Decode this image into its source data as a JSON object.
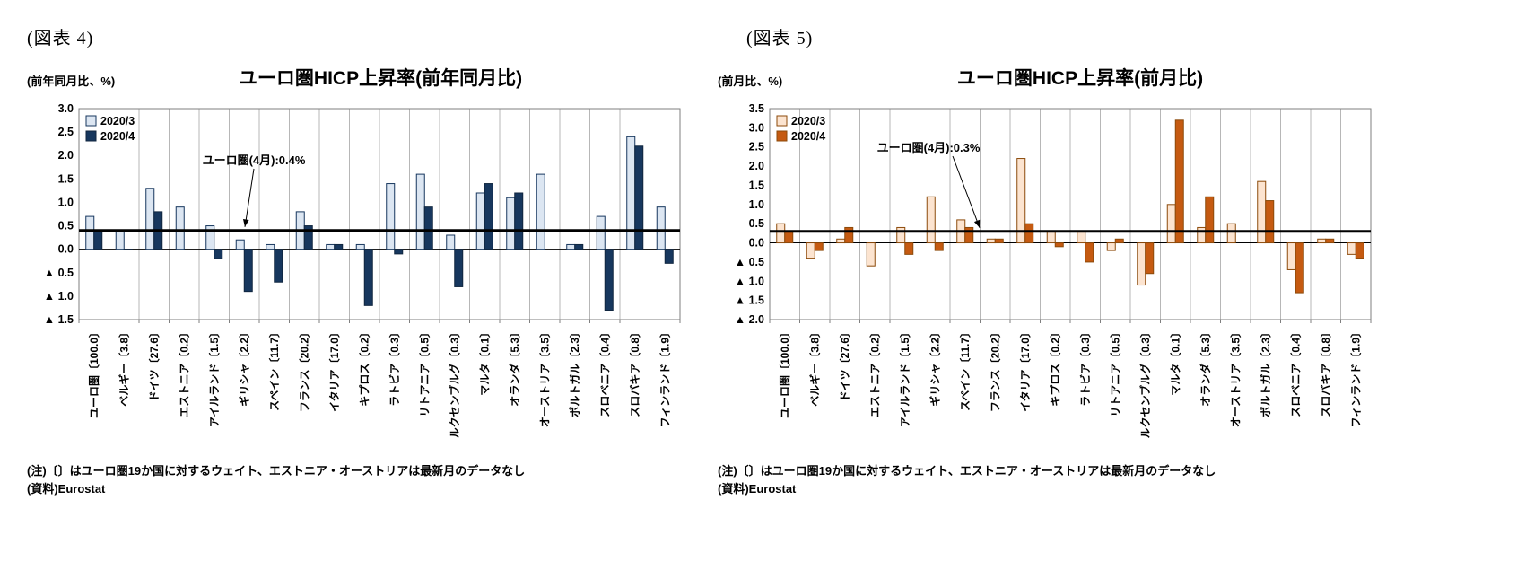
{
  "chart_data": [
    {
      "type": "bar",
      "figure_label": "(図表 4)",
      "unit_label": "(前年同月比、%)",
      "title": "ユーロ圏HICP上昇率(前年同月比)",
      "categories": [
        "ユーロ圏〔100.0〕",
        "ベルギー〔3.8〕",
        "ドイツ〔27.6〕",
        "エストニア〔0.2〕",
        "アイルランド〔1.5〕",
        "ギリシャ〔2.2〕",
        "スペイン〔11.7〕",
        "フランス〔20.2〕",
        "イタリア〔17.0〕",
        "キプロス〔0.2〕",
        "ラトビア〔0.3〕",
        "リトアニア〔0.5〕",
        "ルクセンブルグ〔0.3〕",
        "マルタ〔0.1〕",
        "オランダ〔5.3〕",
        "オーストリア〔3.5〕",
        "ポルトガル〔2.3〕",
        "スロベニア〔0.4〕",
        "スロバキア〔0.8〕",
        "フィンランド〔1.9〕"
      ],
      "series": [
        {
          "name": "2020/3",
          "color": "#dce6f2",
          "border": "#17375e",
          "values": [
            0.7,
            0.4,
            1.3,
            0.9,
            0.5,
            0.2,
            0.1,
            0.8,
            0.1,
            0.1,
            1.4,
            1.6,
            0.3,
            1.2,
            1.1,
            1.6,
            0.1,
            0.7,
            2.4,
            0.9
          ]
        },
        {
          "name": "2020/4",
          "color": "#17375e",
          "border": "#10263f",
          "values": [
            0.4,
            0.0,
            0.8,
            null,
            -0.2,
            -0.9,
            -0.7,
            0.5,
            0.1,
            -1.2,
            -0.1,
            0.9,
            -0.8,
            1.4,
            1.2,
            null,
            0.1,
            -1.3,
            2.2,
            -0.3
          ]
        }
      ],
      "ylim": [
        -1.5,
        3.0
      ],
      "ytick_step": 0.5,
      "negative_tick_prefix": "▲ ",
      "reference_line": {
        "value": 0.4,
        "label": "ユーロ圏(4月):0.4%"
      },
      "legend_position": "top-left-inside",
      "gridlines": "vertical",
      "notes": [
        "(注)〔〕はユーロ圏19か国に対するウェイト、エストニア・オーストリアは最新月のデータなし",
        "(資料)Eurostat"
      ]
    },
    {
      "type": "bar",
      "figure_label": "(図表 5)",
      "unit_label": "(前月比、%)",
      "title": "ユーロ圏HICP上昇率(前月比)",
      "categories": [
        "ユーロ圏〔100.0〕",
        "ベルギー〔3.8〕",
        "ドイツ〔27.6〕",
        "エストニア〔0.2〕",
        "アイルランド〔1.5〕",
        "ギリシャ〔2.2〕",
        "スペイン〔11.7〕",
        "フランス〔20.2〕",
        "イタリア〔17.0〕",
        "キプロス〔0.2〕",
        "ラトビア〔0.3〕",
        "リトアニア〔0.5〕",
        "ルクセンブルグ〔0.3〕",
        "マルタ〔0.1〕",
        "オランダ〔5.3〕",
        "オーストリア〔3.5〕",
        "ポルトガル〔2.3〕",
        "スロベニア〔0.4〕",
        "スロバキア〔0.8〕",
        "フィンランド〔1.9〕"
      ],
      "series": [
        {
          "name": "2020/3",
          "color": "#fce4d0",
          "border": "#8c4a0a",
          "values": [
            0.5,
            -0.4,
            0.1,
            -0.6,
            0.4,
            1.2,
            0.6,
            0.1,
            2.2,
            0.3,
            0.3,
            -0.2,
            -1.1,
            1.0,
            0.4,
            0.5,
            1.6,
            -0.7,
            0.1,
            -0.3
          ]
        },
        {
          "name": "2020/4",
          "color": "#c55a11",
          "border": "#8c4a0a",
          "values": [
            0.3,
            -0.2,
            0.4,
            null,
            -0.3,
            -0.2,
            0.4,
            0.1,
            0.5,
            -0.1,
            -0.5,
            0.1,
            -0.8,
            3.2,
            1.2,
            null,
            1.1,
            -1.3,
            0.1,
            -0.4
          ]
        }
      ],
      "ylim": [
        -2.0,
        3.5
      ],
      "ytick_step": 0.5,
      "negative_tick_prefix": "▲ ",
      "reference_line": {
        "value": 0.3,
        "label": "ユーロ圏(4月):0.3%"
      },
      "legend_position": "top-left-inside",
      "gridlines": "vertical",
      "notes": [
        "(注)〔〕はユーロ圏19か国に対するウェイト、エストニア・オーストリアは最新月のデータなし",
        "(資料)Eurostat"
      ]
    }
  ]
}
